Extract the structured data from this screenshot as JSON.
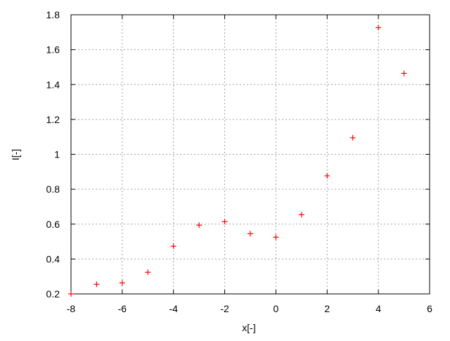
{
  "chart_data": {
    "type": "scatter",
    "xlabel": "x[-]",
    "ylabel": "I[-]",
    "xlim": [
      -8,
      6
    ],
    "ylim": [
      0.2,
      1.8
    ],
    "xticks": [
      "-8",
      "-6",
      "-4",
      "-2",
      "0",
      "2",
      "4",
      "6"
    ],
    "xtick_values": [
      -8,
      -6,
      -4,
      -2,
      0,
      2,
      4,
      6
    ],
    "yticks": [
      "0.2",
      "0.4",
      "0.6",
      "0.8",
      "1",
      "1.2",
      "1.4",
      "1.6",
      "1.8"
    ],
    "ytick_values": [
      0.2,
      0.4,
      0.6,
      0.8,
      1.0,
      1.2,
      1.4,
      1.6,
      1.8
    ],
    "grid": true,
    "marker": "plus",
    "color": "#ff0000",
    "series": [
      {
        "x": [
          -8,
          -7,
          -6,
          -5,
          -4,
          -3,
          -2,
          -1,
          0,
          1,
          2,
          3,
          4,
          5
        ],
        "y": [
          0.2,
          0.255,
          0.263,
          0.324,
          0.473,
          0.594,
          0.614,
          0.545,
          0.525,
          0.654,
          0.877,
          1.095,
          1.726,
          1.464
        ]
      }
    ]
  }
}
